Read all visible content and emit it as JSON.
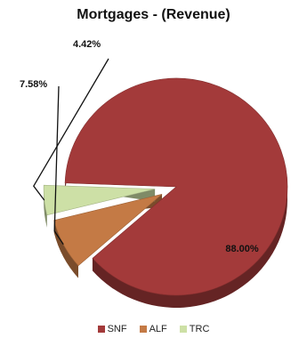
{
  "chart_data": {
    "type": "pie",
    "title": "Mortgages - (Revenue)",
    "categories": [
      "SNF",
      "ALF",
      "TRC"
    ],
    "values": [
      88.0,
      7.58,
      4.42
    ],
    "labels": [
      "88.00%",
      "7.58%",
      "4.42%"
    ],
    "colors": [
      "#a33a3a",
      "#c47a45",
      "#cde0a6"
    ],
    "exploded": [
      "ALF",
      "TRC"
    ],
    "legend_position": "bottom",
    "style": "3d"
  }
}
